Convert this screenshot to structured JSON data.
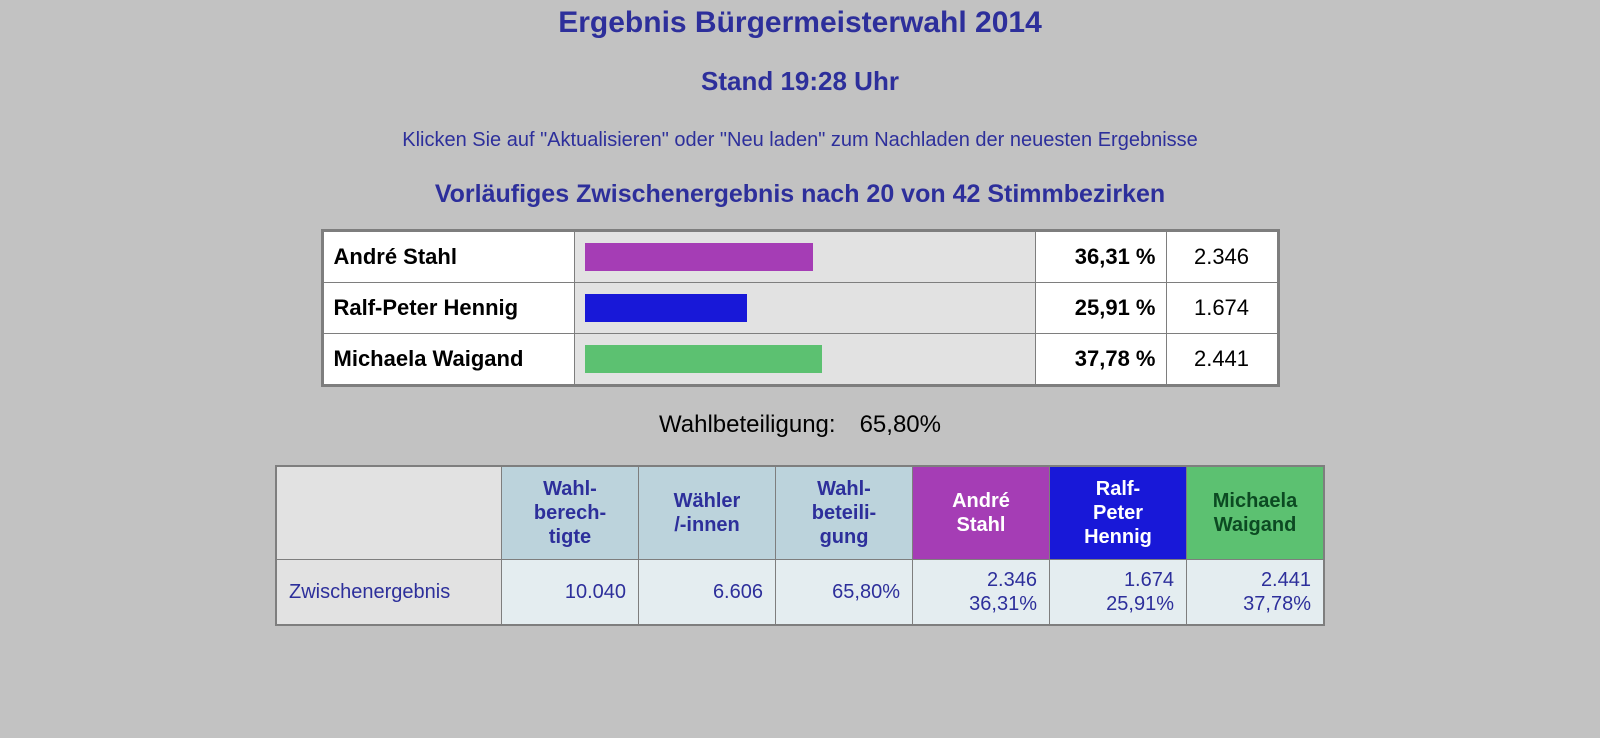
{
  "page_background": "#c2c2c2",
  "accent_text_color": "#2d2f9b",
  "title": "Ergebnis Bürgermeisterwahl 2014",
  "subtitle": "Stand 19:28 Uhr",
  "hint": "Klicken Sie auf \"Aktualisieren\" oder \"Neu laden\" zum Nachladen der neuesten Ergebnisse",
  "section": "Vorläufiges Zwischenergebnis nach 20 von 42 Stimmbezirken",
  "results": {
    "bar_max_percent": 70,
    "bar_cell_bg": "#e2e2e2",
    "name_cell_bg": "#ffffff",
    "table_border": "#7e7e7e",
    "candidates": [
      {
        "name": "André Stahl",
        "percent_label": "36,31 %",
        "percent": 36.31,
        "count": "2.346",
        "color": "#a53db5"
      },
      {
        "name": "Ralf-Peter Hennig",
        "percent_label": "25,91 %",
        "percent": 25.91,
        "count": "1.674",
        "color": "#1818d8"
      },
      {
        "name": "Michaela Waigand",
        "percent_label": "37,78 %",
        "percent": 37.78,
        "count": "2.441",
        "color": "#5cc171"
      }
    ]
  },
  "turnout": {
    "label": "Wahlbeteiligung:",
    "value": "65,80%"
  },
  "summary": {
    "header_light_bg": "#bcd3dc",
    "header_light_fg": "#2d2f9b",
    "data_bg": "#e4edf0",
    "data_fg": "#2d2f9b",
    "rowlabel_bg": "#e2e2e2",
    "columns": [
      {
        "key": "blank",
        "label_lines": [
          ""
        ],
        "type": "blank"
      },
      {
        "key": "berechtigte",
        "label_lines": [
          "Wahl-",
          "berech-",
          "tigte"
        ],
        "type": "light"
      },
      {
        "key": "waehler",
        "label_lines": [
          "Wähler",
          "/-innen"
        ],
        "type": "light"
      },
      {
        "key": "beteiligung",
        "label_lines": [
          "Wahl-",
          "beteili-",
          "gung"
        ],
        "type": "light"
      },
      {
        "key": "c1",
        "label_lines": [
          "André",
          "Stahl"
        ],
        "type": "cand",
        "bg": "#a53db5",
        "fg": "#ffffff"
      },
      {
        "key": "c2",
        "label_lines": [
          "Ralf-",
          "Peter",
          "Hennig"
        ],
        "type": "cand",
        "bg": "#1818d8",
        "fg": "#ffffff"
      },
      {
        "key": "c3",
        "label_lines": [
          "Michaela",
          "Waigand"
        ],
        "type": "cand",
        "bg": "#5cc171",
        "fg": "#0c4a22"
      }
    ],
    "row": {
      "label": "Zwischenergebnis",
      "berechtigte": "10.040",
      "waehler": "6.606",
      "beteiligung": "65,80%",
      "c1_top": "2.346",
      "c1_bot": "36,31%",
      "c2_top": "1.674",
      "c2_bot": "25,91%",
      "c3_top": "2.441",
      "c3_bot": "37,78%"
    }
  }
}
